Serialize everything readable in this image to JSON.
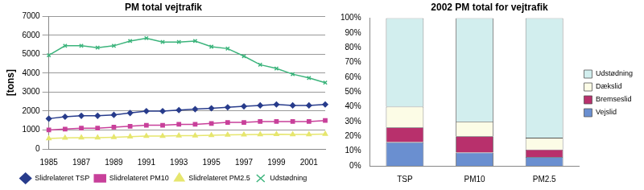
{
  "chart_data": [
    {
      "type": "line",
      "title": "PM total vejtrafik",
      "y_label": "[tons]",
      "categories": [
        "1985",
        null,
        "1987",
        null,
        "1989",
        null,
        "1991",
        null,
        "1993",
        null,
        "1995",
        null,
        "1997",
        null,
        "1999",
        null,
        "2001",
        null
      ],
      "series": [
        {
          "name": "Slidrelateret TSP",
          "color": "#283c8c",
          "marker": "diamond",
          "values": [
            1600,
            1700,
            1750,
            1750,
            1800,
            1900,
            2000,
            2000,
            2050,
            2100,
            2150,
            2200,
            2250,
            2300,
            2350,
            2300,
            2300,
            2350
          ]
        },
        {
          "name": "Slidrelateret PM10",
          "color": "#c8409a",
          "marker": "square",
          "values": [
            1000,
            1050,
            1100,
            1100,
            1150,
            1200,
            1250,
            1250,
            1300,
            1300,
            1350,
            1400,
            1400,
            1450,
            1450,
            1450,
            1450,
            1500
          ]
        },
        {
          "name": "Slidrelateret PM2.5",
          "color": "#e6e66e",
          "marker": "triangle",
          "values": [
            550,
            580,
            600,
            600,
            620,
            650,
            680,
            680,
            700,
            700,
            720,
            740,
            750,
            770,
            780,
            770,
            770,
            790
          ]
        },
        {
          "name": "Udstødning",
          "color": "#3cb47c",
          "marker": "x",
          "values": [
            4950,
            5450,
            5450,
            5350,
            5450,
            5700,
            5850,
            5650,
            5650,
            5700,
            5400,
            5300,
            4900,
            4450,
            4250,
            3950,
            3750,
            3500
          ]
        }
      ],
      "ylim": [
        0,
        7000
      ],
      "yticks": [
        0,
        1000,
        2000,
        3000,
        4000,
        5000,
        6000,
        7000
      ],
      "grid": true,
      "legend": "bottom"
    },
    {
      "type": "bar",
      "title": "2002 PM total for vejtrafik",
      "categories": [
        "TSP",
        "PM10",
        "PM2.5"
      ],
      "stacked": true,
      "series": [
        {
          "name": "Vejslid",
          "color": "#6a8fd0",
          "values": [
            16,
            9,
            6
          ]
        },
        {
          "name": "Bremseslid",
          "color": "#b8306c",
          "values": [
            10,
            11,
            5
          ]
        },
        {
          "name": "Dækslid",
          "color": "#fcfce6",
          "values": [
            14,
            10,
            8
          ]
        },
        {
          "name": "Udstødning",
          "color": "#d2eeee",
          "values": [
            60,
            70,
            81
          ]
        }
      ],
      "ylim": [
        0,
        100
      ],
      "yticks": [
        {
          "value": 0,
          "label": "0%"
        },
        {
          "value": 10,
          "label": "10%"
        },
        {
          "value": 20,
          "label": "20%"
        },
        {
          "value": 30,
          "label": "30%"
        },
        {
          "value": 40,
          "label": "40%"
        },
        {
          "value": 50,
          "label": "50%"
        },
        {
          "value": 60,
          "label": "60%"
        },
        {
          "value": 70,
          "label": "70%"
        },
        {
          "value": 80,
          "label": "80%"
        },
        {
          "value": 90,
          "label": "90%"
        },
        {
          "value": 100,
          "label": "100%"
        }
      ],
      "grid": false,
      "legend": "right"
    }
  ]
}
